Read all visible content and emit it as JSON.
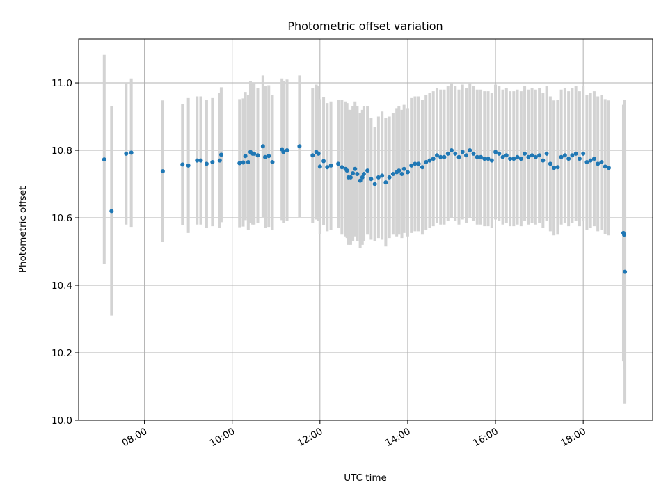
{
  "chart_data": {
    "type": "scatter",
    "title": "Photometric offset variation",
    "xlabel": "UTC time",
    "ylabel": "Photometric offset",
    "x_ticks": [
      "08:00",
      "10:00",
      "12:00",
      "14:00",
      "16:00",
      "18:00"
    ],
    "y_ticks": [
      "10.0",
      "10.2",
      "10.4",
      "10.6",
      "10.8",
      "11.0"
    ],
    "xlim": [
      "06:30",
      "19:35"
    ],
    "ylim": [
      10.0,
      11.13
    ],
    "grid": true,
    "colors": {
      "points": "#1f77b4",
      "error_bars": "#d3d3d3"
    },
    "series": [
      {
        "x": [
          "07:05",
          "07:15",
          "07:35",
          "07:42",
          "08:25",
          "08:52",
          "09:00",
          "09:12",
          "09:17",
          "09:25",
          "09:33",
          "09:43",
          "09:45",
          "10:10",
          "10:15",
          "10:18",
          "10:22",
          "10:25",
          "10:28",
          "10:30",
          "10:35",
          "10:42",
          "10:45",
          "10:50",
          "10:55",
          "11:08",
          "11:10",
          "11:15",
          "11:32",
          "11:50",
          "11:55",
          "11:58",
          "12:00",
          "12:05",
          "12:10",
          "12:15",
          "12:25",
          "12:30",
          "12:35",
          "12:37",
          "12:39",
          "12:42",
          "12:45",
          "12:48",
          "12:51",
          "12:55",
          "12:58",
          "13:00",
          "13:05",
          "13:10",
          "13:15",
          "13:20",
          "13:25",
          "13:30",
          "13:35",
          "13:40",
          "13:45",
          "13:48",
          "13:52",
          "13:55",
          "14:00",
          "14:05",
          "14:10",
          "14:15",
          "14:20",
          "14:25",
          "14:30",
          "14:35",
          "14:40",
          "14:45",
          "14:50",
          "14:55",
          "15:00",
          "15:05",
          "15:10",
          "15:15",
          "15:20",
          "15:25",
          "15:30",
          "15:35",
          "15:40",
          "15:45",
          "15:50",
          "15:55",
          "16:00",
          "16:05",
          "16:10",
          "16:15",
          "16:20",
          "16:25",
          "16:30",
          "16:35",
          "16:40",
          "16:45",
          "16:50",
          "16:55",
          "17:00",
          "17:05",
          "17:10",
          "17:15",
          "17:20",
          "17:25",
          "17:30",
          "17:35",
          "17:40",
          "17:45",
          "17:50",
          "17:55",
          "18:00",
          "18:05",
          "18:10",
          "18:15",
          "18:20",
          "18:25",
          "18:30",
          "18:35",
          "18:55",
          "18:56",
          "18:57"
        ],
        "y": [
          10.773,
          10.62,
          10.79,
          10.793,
          10.738,
          10.758,
          10.755,
          10.77,
          10.77,
          10.76,
          10.765,
          10.77,
          10.787,
          10.762,
          10.764,
          10.783,
          10.765,
          10.795,
          10.79,
          10.79,
          10.785,
          10.812,
          10.78,
          10.783,
          10.765,
          10.803,
          10.795,
          10.8,
          10.812,
          10.785,
          10.795,
          10.79,
          10.752,
          10.768,
          10.75,
          10.755,
          10.76,
          10.75,
          10.745,
          10.74,
          10.72,
          10.72,
          10.732,
          10.745,
          10.73,
          10.71,
          10.72,
          10.73,
          10.74,
          10.715,
          10.7,
          10.72,
          10.725,
          10.705,
          10.72,
          10.73,
          10.735,
          10.74,
          10.73,
          10.745,
          10.735,
          10.755,
          10.76,
          10.76,
          10.75,
          10.765,
          10.77,
          10.775,
          10.785,
          10.78,
          10.78,
          10.79,
          10.8,
          10.79,
          10.78,
          10.795,
          10.785,
          10.8,
          10.79,
          10.78,
          10.78,
          10.775,
          10.775,
          10.77,
          10.795,
          10.79,
          10.78,
          10.785,
          10.775,
          10.775,
          10.78,
          10.775,
          10.79,
          10.78,
          10.785,
          10.78,
          10.785,
          10.77,
          10.79,
          10.76,
          10.748,
          10.75,
          10.78,
          10.785,
          10.775,
          10.785,
          10.79,
          10.775,
          10.79,
          10.765,
          10.77,
          10.775,
          10.76,
          10.765,
          10.752,
          10.748,
          10.555,
          10.55,
          10.44
        ],
        "yerr": [
          0.31,
          0.31,
          0.21,
          0.22,
          0.21,
          0.18,
          0.2,
          0.19,
          0.19,
          0.19,
          0.19,
          0.2,
          0.2,
          0.19,
          0.19,
          0.19,
          0.2,
          0.21,
          0.21,
          0.21,
          0.2,
          0.21,
          0.21,
          0.21,
          0.2,
          0.21,
          0.21,
          0.21,
          0.21,
          0.2,
          0.2,
          0.2,
          0.2,
          0.19,
          0.19,
          0.19,
          0.19,
          0.2,
          0.2,
          0.2,
          0.2,
          0.2,
          0.2,
          0.2,
          0.2,
          0.2,
          0.2,
          0.2,
          0.19,
          0.18,
          0.17,
          0.18,
          0.19,
          0.19,
          0.18,
          0.18,
          0.19,
          0.19,
          0.19,
          0.19,
          0.19,
          0.2,
          0.2,
          0.2,
          0.2,
          0.2,
          0.2,
          0.2,
          0.2,
          0.2,
          0.2,
          0.2,
          0.2,
          0.2,
          0.2,
          0.2,
          0.2,
          0.2,
          0.2,
          0.2,
          0.2,
          0.2,
          0.2,
          0.2,
          0.2,
          0.2,
          0.2,
          0.2,
          0.2,
          0.2,
          0.2,
          0.2,
          0.2,
          0.2,
          0.2,
          0.2,
          0.2,
          0.2,
          0.2,
          0.2,
          0.2,
          0.2,
          0.2,
          0.2,
          0.2,
          0.2,
          0.2,
          0.2,
          0.2,
          0.2,
          0.2,
          0.2,
          0.2,
          0.2,
          0.2,
          0.2,
          0.38,
          0.4,
          0.39
        ]
      }
    ]
  }
}
